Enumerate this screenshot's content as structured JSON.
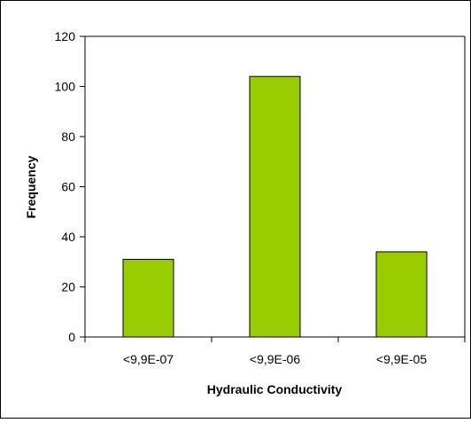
{
  "chart_data": {
    "type": "bar",
    "categories": [
      "<9,9E-07",
      "<9,9E-06",
      "<9,9E-05"
    ],
    "values": [
      31,
      104,
      34
    ],
    "title": "",
    "xlabel": "Hydraulic Conductivity",
    "ylabel": "Frequency",
    "ylim": [
      0,
      120
    ],
    "yticks": [
      0,
      20,
      40,
      60,
      80,
      100,
      120
    ],
    "grid": false,
    "legend": "none",
    "colors": {
      "bar_fill": "#99cc00",
      "bar_stroke": "#000000",
      "axis": "#000000",
      "frame": "#000000",
      "background": "#ffffff"
    }
  }
}
